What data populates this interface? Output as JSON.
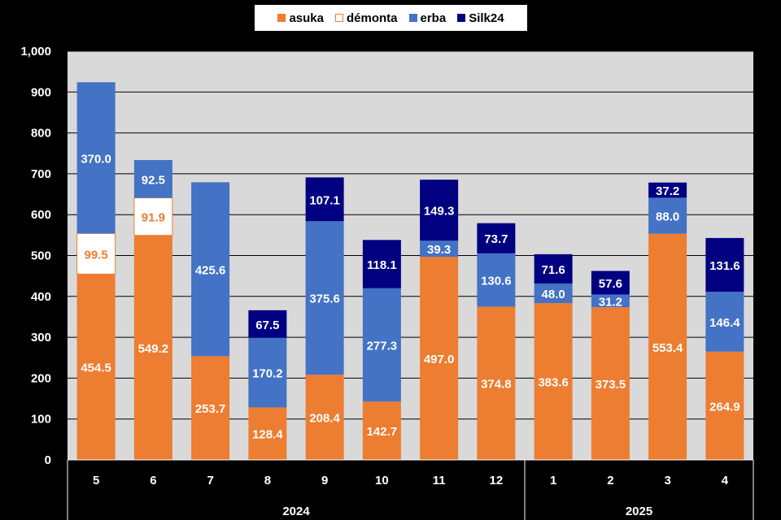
{
  "chart_data": {
    "type": "bar",
    "stacked": true,
    "categories": [
      "5",
      "6",
      "7",
      "8",
      "9",
      "10",
      "11",
      "12",
      "1",
      "2",
      "3",
      "4"
    ],
    "groups": [
      {
        "label": "2024",
        "count": 8
      },
      {
        "label": "2025",
        "count": 4
      }
    ],
    "series": [
      {
        "name": "asuka",
        "color": "#ED7D31",
        "label_color": "#FFFFFF",
        "values": [
          454.5,
          549.2,
          253.7,
          128.4,
          208.4,
          142.7,
          497.0,
          374.8,
          383.6,
          373.5,
          553.4,
          264.9
        ]
      },
      {
        "name": "démonta",
        "color": "#FFFFFF",
        "border": "#ED7D31",
        "label_color": "#ED7D31",
        "values": [
          99.5,
          91.9,
          null,
          null,
          null,
          null,
          null,
          null,
          null,
          null,
          null,
          null
        ]
      },
      {
        "name": "erba",
        "color": "#4472C4",
        "label_color": "#FFFFFF",
        "values": [
          370.0,
          92.5,
          425.6,
          170.2,
          375.6,
          277.3,
          39.3,
          130.6,
          48.0,
          31.2,
          88.0,
          146.4
        ]
      },
      {
        "name": "Silk24",
        "color": "#000080",
        "label_color": "#FFFFFF",
        "values": [
          null,
          null,
          null,
          67.5,
          107.1,
          118.1,
          149.3,
          73.7,
          71.6,
          57.6,
          37.2,
          131.6
        ]
      }
    ],
    "ylim": [
      0,
      1000
    ],
    "yticks": [
      "0",
      "100",
      "200",
      "300",
      "400",
      "500",
      "600",
      "700",
      "800",
      "900",
      "1,000"
    ],
    "grid": true,
    "legend_position": "top",
    "plot_background": "#D9D9D9",
    "page_background": "#000000",
    "title": "",
    "xlabel": "",
    "ylabel": ""
  }
}
